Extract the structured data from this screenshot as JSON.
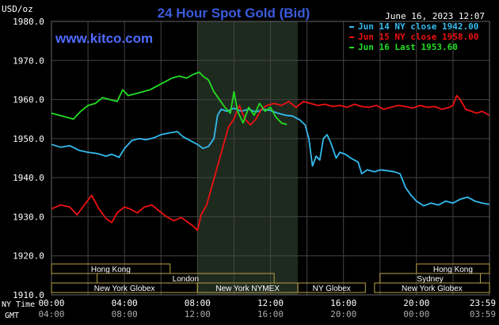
{
  "header": {
    "title": "24 Hour Spot Gold (Bid)",
    "unit": "USD/oz",
    "timestamp": "June 16, 2023 12:07",
    "website": "www.kitco.com"
  },
  "colors": {
    "background": "#000000",
    "grid": "#444444",
    "axis_text": "#ffffff",
    "title": "#3b5bdb",
    "website": "#4f6bff",
    "series_jun14": "#33bbee",
    "series_jun15": "#ee1111",
    "series_jun16": "#22dd22",
    "session_bar": "#b8a045",
    "highlight_band": "#1f2a1f"
  },
  "time_labels": {
    "ny_time": "NY Time",
    "gmt": "GMT"
  },
  "sessions": [
    {
      "label": "Hong Kong",
      "start": 0.0,
      "end": 6.5,
      "row": 0
    },
    {
      "label": "Hong Kong",
      "start": 20.0,
      "end": 24.0,
      "row": 0
    },
    {
      "label": "London",
      "start": 2.5,
      "end": 12.2,
      "row": 1
    },
    {
      "label": "Sydney",
      "start": 18.0,
      "end": 23.5,
      "row": 1
    },
    {
      "label": "New York Globex",
      "start": 0.0,
      "end": 8.0,
      "row": 2
    },
    {
      "label": "New York NYMEX",
      "start": 8.0,
      "end": 13.5,
      "row": 2
    },
    {
      "label": "NY Globex",
      "start": 13.5,
      "end": 17.2,
      "row": 2
    },
    {
      "label": "New York Globex",
      "start": 17.7,
      "end": 24.0,
      "row": 2
    }
  ],
  "chart_data": {
    "type": "line",
    "title": "24 Hour Spot Gold (Bid)",
    "ylabel": "USD/oz",
    "ylim": [
      1910,
      1980
    ],
    "yticks": [
      "1910.0",
      "1920.0",
      "1930.0",
      "1940.0",
      "1950.0",
      "1960.0",
      "1970.0",
      "1980.0"
    ],
    "xlim": [
      0,
      24
    ],
    "xticks_ny": [
      "00:00",
      "04:00",
      "08:00",
      "12:00",
      "16:00",
      "20:00",
      "23:59"
    ],
    "xticks_gmt": [
      "04:00",
      "08:00",
      "12:00",
      "16:00",
      "20:00",
      "00:00",
      "03:59"
    ],
    "grid": true,
    "legend_position": "top-right",
    "highlight_range": [
      8.0,
      13.5
    ],
    "series": [
      {
        "name": "Jun 14 NY close 1942.00",
        "color": "#33bbee",
        "points": [
          [
            0,
            1948.5
          ],
          [
            0.5,
            1947.8
          ],
          [
            1,
            1948.2
          ],
          [
            1.5,
            1947.0
          ],
          [
            2,
            1946.5
          ],
          [
            2.5,
            1946.2
          ],
          [
            3,
            1945.5
          ],
          [
            3.3,
            1946.0
          ],
          [
            3.7,
            1945.2
          ],
          [
            4.0,
            1947.5
          ],
          [
            4.4,
            1949.5
          ],
          [
            4.8,
            1950.0
          ],
          [
            5.2,
            1949.7
          ],
          [
            5.6,
            1950.2
          ],
          [
            6.0,
            1951.0
          ],
          [
            6.5,
            1951.5
          ],
          [
            6.9,
            1951.8
          ],
          [
            7.2,
            1950.5
          ],
          [
            7.6,
            1949.5
          ],
          [
            8.0,
            1948.5
          ],
          [
            8.3,
            1947.5
          ],
          [
            8.6,
            1948.0
          ],
          [
            8.9,
            1950.0
          ],
          [
            9.1,
            1956.0
          ],
          [
            9.3,
            1957.5
          ],
          [
            9.6,
            1957.0
          ],
          [
            10.0,
            1957.8
          ],
          [
            10.4,
            1957.0
          ],
          [
            10.8,
            1957.5
          ],
          [
            11.2,
            1956.8
          ],
          [
            11.6,
            1957.5
          ],
          [
            12.0,
            1957.2
          ],
          [
            12.4,
            1956.5
          ],
          [
            12.8,
            1956.0
          ],
          [
            13.2,
            1955.8
          ],
          [
            13.6,
            1954.8
          ],
          [
            13.9,
            1953.5
          ],
          [
            14.1,
            1950.0
          ],
          [
            14.3,
            1943.0
          ],
          [
            14.5,
            1945.5
          ],
          [
            14.7,
            1944.5
          ],
          [
            14.9,
            1950.0
          ],
          [
            15.1,
            1951.0
          ],
          [
            15.3,
            1949.0
          ],
          [
            15.6,
            1945.0
          ],
          [
            15.8,
            1946.5
          ],
          [
            16.1,
            1946.0
          ],
          [
            16.4,
            1945.0
          ],
          [
            16.8,
            1944.0
          ],
          [
            17.0,
            1941.0
          ],
          [
            17.3,
            1942.0
          ],
          [
            17.7,
            1941.5
          ],
          [
            18.0,
            1942.0
          ],
          [
            18.4,
            1941.8
          ],
          [
            18.8,
            1941.5
          ],
          [
            19.1,
            1941.0
          ],
          [
            19.4,
            1937.5
          ],
          [
            19.7,
            1935.5
          ],
          [
            20.0,
            1934.0
          ],
          [
            20.4,
            1932.8
          ],
          [
            20.8,
            1933.5
          ],
          [
            21.2,
            1933.0
          ],
          [
            21.6,
            1934.0
          ],
          [
            22.0,
            1933.5
          ],
          [
            22.4,
            1934.5
          ],
          [
            22.8,
            1935.0
          ],
          [
            23.2,
            1934.0
          ],
          [
            23.6,
            1933.5
          ],
          [
            23.98,
            1933.2
          ]
        ]
      },
      {
        "name": "Jun 15 NY close 1958.00",
        "color": "#ee1111",
        "points": [
          [
            0,
            1932.0
          ],
          [
            0.5,
            1933.0
          ],
          [
            1,
            1932.5
          ],
          [
            1.4,
            1930.5
          ],
          [
            1.8,
            1933.0
          ],
          [
            2.2,
            1935.5
          ],
          [
            2.6,
            1932.0
          ],
          [
            3.0,
            1929.5
          ],
          [
            3.3,
            1928.5
          ],
          [
            3.6,
            1931.0
          ],
          [
            4.0,
            1932.5
          ],
          [
            4.3,
            1932.0
          ],
          [
            4.7,
            1931.0
          ],
          [
            5.1,
            1932.5
          ],
          [
            5.5,
            1933.0
          ],
          [
            5.9,
            1931.5
          ],
          [
            6.3,
            1930.0
          ],
          [
            6.7,
            1929.0
          ],
          [
            7.1,
            1929.8
          ],
          [
            7.5,
            1928.5
          ],
          [
            7.8,
            1927.5
          ],
          [
            8.0,
            1926.5
          ],
          [
            8.2,
            1930.5
          ],
          [
            8.5,
            1933.0
          ],
          [
            8.8,
            1938.0
          ],
          [
            9.1,
            1943.0
          ],
          [
            9.4,
            1948.0
          ],
          [
            9.7,
            1953.0
          ],
          [
            10.0,
            1955.0
          ],
          [
            10.3,
            1958.5
          ],
          [
            10.6,
            1955.0
          ],
          [
            10.9,
            1953.5
          ],
          [
            11.2,
            1955.0
          ],
          [
            11.5,
            1957.5
          ],
          [
            11.8,
            1958.5
          ],
          [
            12.2,
            1959.0
          ],
          [
            12.6,
            1958.5
          ],
          [
            13.0,
            1959.5
          ],
          [
            13.4,
            1958.0
          ],
          [
            13.8,
            1959.5
          ],
          [
            14.2,
            1959.0
          ],
          [
            14.6,
            1958.5
          ],
          [
            15.0,
            1958.8
          ],
          [
            15.4,
            1958.2
          ],
          [
            15.8,
            1958.5
          ],
          [
            16.2,
            1958.0
          ],
          [
            16.6,
            1958.8
          ],
          [
            17.0,
            1958.2
          ],
          [
            17.4,
            1958.0
          ],
          [
            17.8,
            1958.5
          ],
          [
            18.2,
            1957.5
          ],
          [
            18.6,
            1958.0
          ],
          [
            19.0,
            1958.5
          ],
          [
            19.4,
            1958.2
          ],
          [
            19.8,
            1957.8
          ],
          [
            20.2,
            1958.5
          ],
          [
            20.6,
            1958.0
          ],
          [
            21.0,
            1958.2
          ],
          [
            21.4,
            1957.5
          ],
          [
            21.8,
            1958.0
          ],
          [
            22.0,
            1958.5
          ],
          [
            22.2,
            1961.0
          ],
          [
            22.4,
            1960.0
          ],
          [
            22.7,
            1957.5
          ],
          [
            23.0,
            1957.0
          ],
          [
            23.3,
            1956.5
          ],
          [
            23.6,
            1957.0
          ],
          [
            23.98,
            1956.0
          ]
        ]
      },
      {
        "name": "Jun 16 Last 1953.60",
        "color": "#22dd22",
        "points": [
          [
            0,
            1956.5
          ],
          [
            0.4,
            1956.0
          ],
          [
            0.8,
            1955.5
          ],
          [
            1.2,
            1955.0
          ],
          [
            1.6,
            1957.0
          ],
          [
            2.0,
            1958.5
          ],
          [
            2.4,
            1959.0
          ],
          [
            2.8,
            1960.5
          ],
          [
            3.2,
            1960.0
          ],
          [
            3.6,
            1959.5
          ],
          [
            3.9,
            1962.5
          ],
          [
            4.2,
            1961.0
          ],
          [
            4.6,
            1961.5
          ],
          [
            5.0,
            1962.0
          ],
          [
            5.4,
            1962.5
          ],
          [
            5.8,
            1963.5
          ],
          [
            6.2,
            1964.5
          ],
          [
            6.6,
            1965.5
          ],
          [
            7.0,
            1966.0
          ],
          [
            7.4,
            1965.5
          ],
          [
            7.8,
            1966.5
          ],
          [
            8.1,
            1967.0
          ],
          [
            8.3,
            1966.0
          ],
          [
            8.6,
            1965.0
          ],
          [
            8.9,
            1962.0
          ],
          [
            9.2,
            1960.0
          ],
          [
            9.5,
            1958.0
          ],
          [
            9.8,
            1956.5
          ],
          [
            10.0,
            1962.0
          ],
          [
            10.2,
            1957.0
          ],
          [
            10.5,
            1954.0
          ],
          [
            10.8,
            1958.0
          ],
          [
            11.1,
            1956.0
          ],
          [
            11.4,
            1959.0
          ],
          [
            11.7,
            1957.0
          ],
          [
            12.0,
            1958.0
          ],
          [
            12.3,
            1955.5
          ],
          [
            12.6,
            1954.0
          ],
          [
            12.9,
            1953.6
          ]
        ]
      }
    ]
  }
}
